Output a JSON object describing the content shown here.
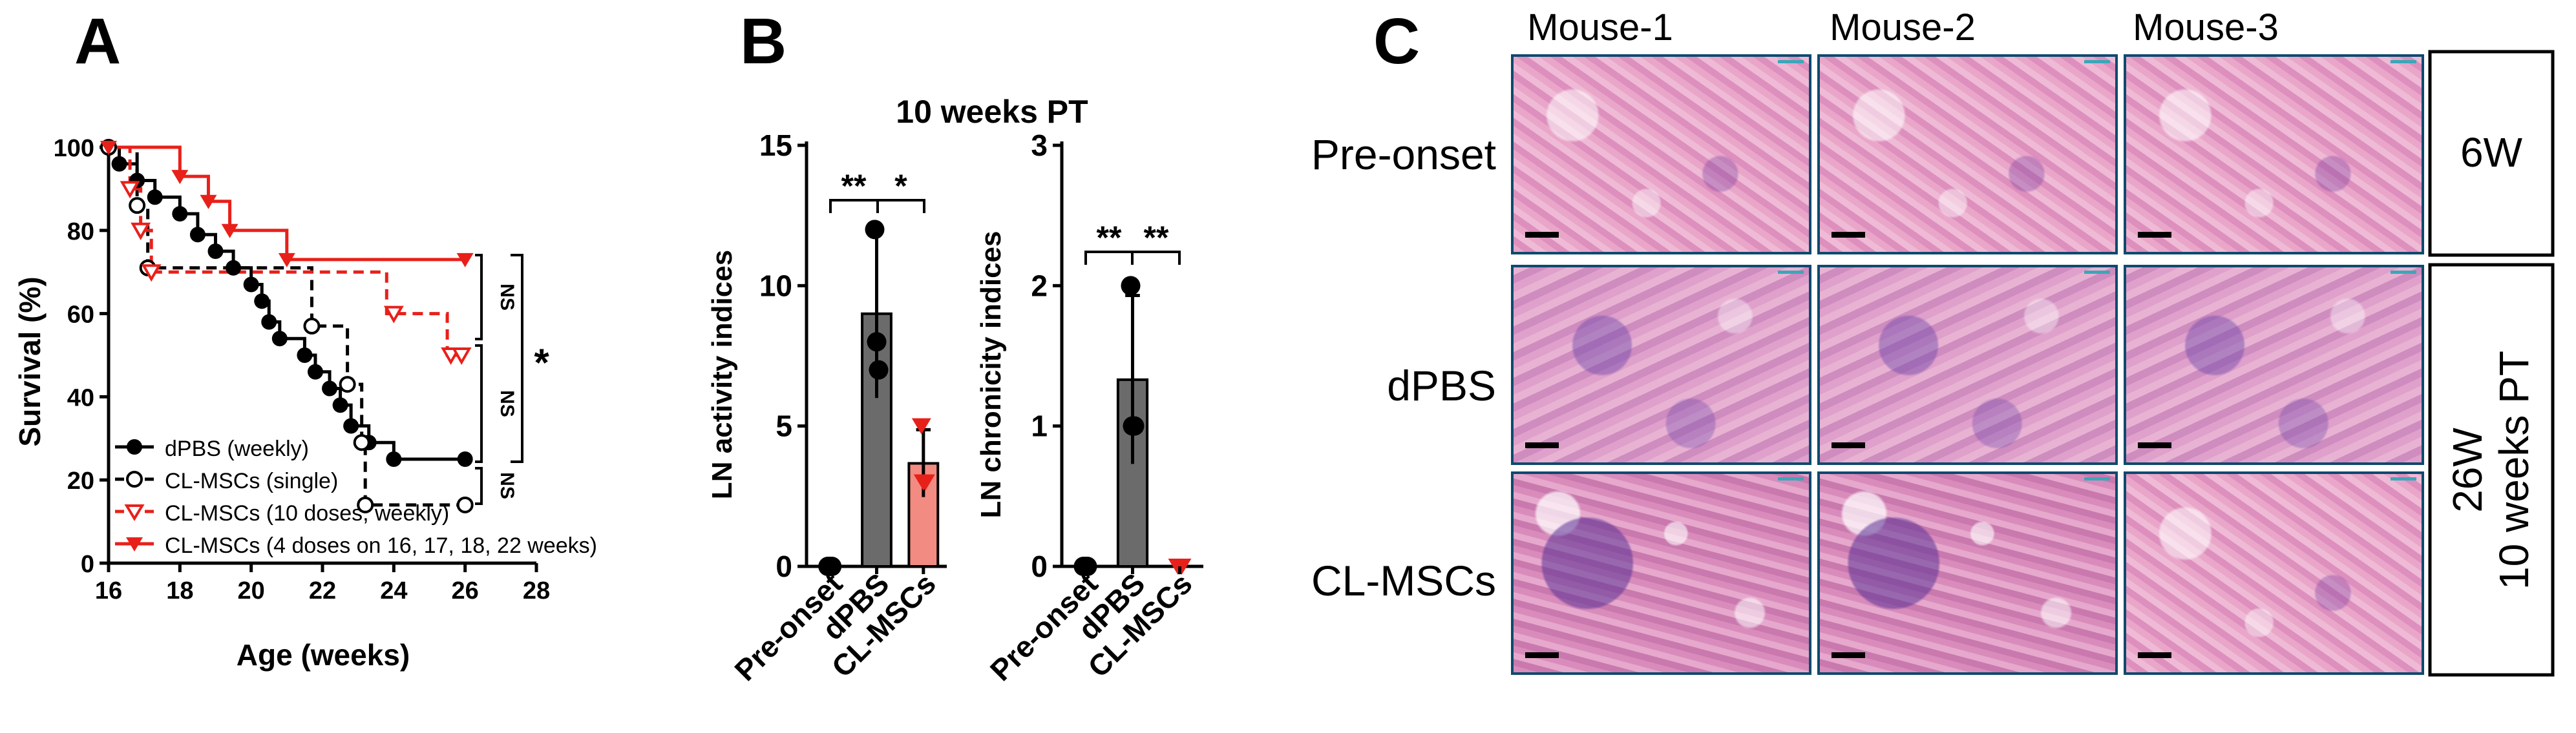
{
  "panels": {
    "a": "A",
    "b": "B",
    "c": "C"
  },
  "chart_data": [
    {
      "type": "line",
      "subtype": "kaplan-meier",
      "xlabel": "Age (weeks)",
      "ylabel": "Survival (%)",
      "xlim": [
        16,
        28
      ],
      "ylim": [
        0,
        100
      ],
      "xticks": [
        "16",
        "18",
        "20",
        "22",
        "24",
        "26",
        "28"
      ],
      "yticks": [
        "0",
        "20",
        "40",
        "60",
        "80",
        "100"
      ],
      "legend_position": "bottom-left",
      "series": [
        {
          "name": "dPBS (weekly)",
          "color": "#000000",
          "dashed": false,
          "marker": "filled-circle",
          "steps": [
            [
              16,
              100
            ],
            [
              16.3,
              96
            ],
            [
              16.8,
              92
            ],
            [
              17.3,
              88
            ],
            [
              18,
              84
            ],
            [
              18.5,
              79
            ],
            [
              19,
              75
            ],
            [
              19.5,
              71
            ],
            [
              20,
              67
            ],
            [
              20.3,
              63
            ],
            [
              20.5,
              58
            ],
            [
              20.8,
              54
            ],
            [
              21.5,
              50
            ],
            [
              21.8,
              46
            ],
            [
              22.2,
              42
            ],
            [
              22.5,
              38
            ],
            [
              22.8,
              33
            ],
            [
              23.3,
              29
            ],
            [
              24,
              25
            ],
            [
              26,
              25
            ]
          ],
          "markers": [
            [
              16,
              100
            ],
            [
              16.3,
              96
            ],
            [
              16.8,
              92
            ],
            [
              17.3,
              88
            ],
            [
              18,
              84
            ],
            [
              18.5,
              79
            ],
            [
              19,
              75
            ],
            [
              19.5,
              71
            ],
            [
              20,
              67
            ],
            [
              20.3,
              63
            ],
            [
              20.5,
              58
            ],
            [
              20.8,
              54
            ],
            [
              21.5,
              50
            ],
            [
              21.8,
              46
            ],
            [
              22.2,
              42
            ],
            [
              22.5,
              38
            ],
            [
              22.8,
              33
            ],
            [
              23.3,
              29
            ],
            [
              24,
              25
            ],
            [
              26,
              25
            ]
          ]
        },
        {
          "name": "CL-MSCs (single)",
          "color": "#000000",
          "dashed": true,
          "marker": "open-circle",
          "steps": [
            [
              16,
              100
            ],
            [
              16.8,
              86
            ],
            [
              17.1,
              71
            ],
            [
              21.7,
              57
            ],
            [
              22.7,
              43
            ],
            [
              23.1,
              29
            ],
            [
              23.2,
              14
            ],
            [
              26,
              14
            ]
          ],
          "markers": [
            [
              16,
              100
            ],
            [
              16.8,
              86
            ],
            [
              17.1,
              71
            ],
            [
              21.7,
              57
            ],
            [
              22.7,
              43
            ],
            [
              23.1,
              29
            ],
            [
              23.2,
              14
            ],
            [
              26,
              14
            ]
          ]
        },
        {
          "name": "CL-MSCs (10 doses, weekly)",
          "color": "#e8201a",
          "dashed": true,
          "marker": "open-triangle-down",
          "steps": [
            [
              16,
              100
            ],
            [
              16.6,
              90
            ],
            [
              16.9,
              80
            ],
            [
              17.2,
              70
            ],
            [
              23.8,
              60
            ],
            [
              25.5,
              50
            ],
            [
              26,
              50
            ]
          ],
          "markers": [
            [
              16.6,
              90
            ],
            [
              16.9,
              80
            ],
            [
              17.2,
              70
            ],
            [
              24,
              60
            ],
            [
              25.6,
              50
            ],
            [
              25.9,
              50
            ]
          ]
        },
        {
          "name": "CL-MSCs (4 doses on 16, 17, 18, 22 weeks)",
          "color": "#e8201a",
          "dashed": false,
          "marker": "filled-triangle-down",
          "steps": [
            [
              16,
              100
            ],
            [
              18,
              93
            ],
            [
              18.8,
              87
            ],
            [
              19.4,
              80
            ],
            [
              21,
              73
            ],
            [
              26,
              73
            ]
          ],
          "markers": [
            [
              16,
              100
            ],
            [
              18,
              93
            ],
            [
              18.8,
              87
            ],
            [
              19.4,
              80
            ],
            [
              21,
              73
            ],
            [
              26,
              73
            ]
          ]
        }
      ],
      "significance": [
        "NS",
        "NS",
        "NS",
        "*"
      ]
    },
    {
      "type": "bar",
      "title": "10 weeks PT",
      "ylabel": "LN activity indices",
      "ylim": [
        0,
        15
      ],
      "yticks": [
        "0",
        "5",
        "10",
        "15"
      ],
      "categories": [
        "Pre-onset",
        "dPBS",
        "CL-MSCs"
      ],
      "values": [
        0,
        9,
        3.67
      ],
      "errors": [
        0,
        3,
        1.2
      ],
      "bar_colors": [
        "#000000",
        "#6b6b6b",
        "#f28b82"
      ],
      "points": [
        [
          0,
          0,
          0
        ],
        [
          12,
          8,
          7
        ],
        [
          5,
          3,
          3
        ]
      ],
      "significance": [
        "**",
        "*"
      ]
    },
    {
      "type": "bar",
      "ylabel": "LN chronicity indices",
      "ylim": [
        0,
        3
      ],
      "yticks": [
        "0",
        "1",
        "2",
        "3"
      ],
      "categories": [
        "Pre-onset",
        "dPBS",
        "CL-MSCs"
      ],
      "values": [
        0,
        1.33,
        0
      ],
      "errors": [
        0,
        0.6,
        0
      ],
      "bar_colors": [
        "#000000",
        "#6b6b6b",
        "#f28b82"
      ],
      "points": [
        [
          0,
          0,
          0
        ],
        [
          2,
          1,
          1
        ],
        [
          0,
          0,
          0
        ]
      ],
      "significance": [
        "**",
        "**"
      ]
    }
  ],
  "histology": {
    "columns": [
      "Mouse-1",
      "Mouse-2",
      "Mouse-3"
    ],
    "rows": [
      "Pre-onset",
      "dPBS",
      "CL-MSCs"
    ],
    "timepoints": {
      "first": "6W",
      "second_line1": "26W",
      "second_line2": "10 weeks PT"
    }
  }
}
